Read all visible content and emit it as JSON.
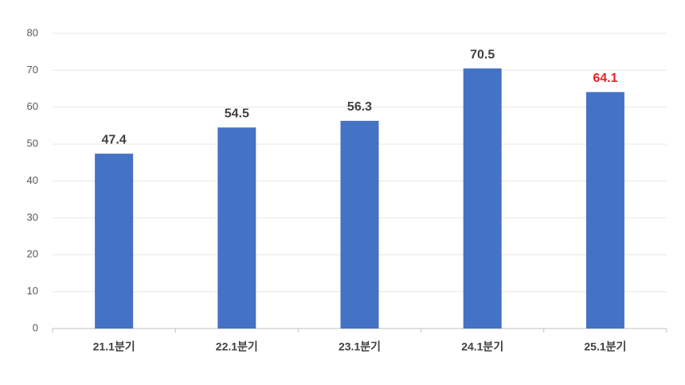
{
  "chart_data": {
    "type": "bar",
    "categories": [
      "21.1분기",
      "22.1분기",
      "23.1분기",
      "24.1분기",
      "25.1분기"
    ],
    "values": [
      47.4,
      54.5,
      56.3,
      70.5,
      64.1
    ],
    "color": "#4472c4",
    "value_label_colors": [
      "#404040",
      "#404040",
      "#404040",
      "#404040",
      "#e8202a"
    ],
    "ylim": [
      0,
      80
    ],
    "yticks": [
      0,
      10,
      20,
      30,
      40,
      50,
      60,
      70,
      80
    ],
    "grid": true
  }
}
